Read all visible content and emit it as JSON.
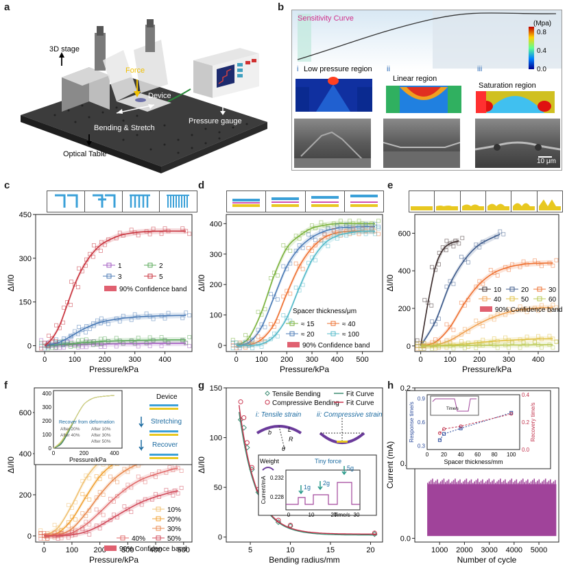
{
  "figure": {
    "panel_letters": [
      "a",
      "b",
      "c",
      "d",
      "e",
      "f",
      "g",
      "h"
    ]
  },
  "panel_a": {
    "labels": {
      "stage": "3D stage",
      "force": "Force",
      "device": "Device",
      "bending": "Bending & Stretch",
      "gauge": "Pressure gauge",
      "table": "Optical Table"
    }
  },
  "panel_b": {
    "title": "Sensitivity Curve",
    "colorbar_unit": "(Mpa)",
    "colorbar_ticks": [
      "0.8",
      "0.4",
      "0.0"
    ],
    "regions": [
      {
        "num": "i",
        "label": "Low pressure region"
      },
      {
        "num": "ii",
        "label": "Linear region"
      },
      {
        "num": "iii",
        "label": "Saturation region"
      }
    ],
    "scale_bar": "10 μm"
  },
  "panel_c": {
    "chart_data": {
      "type": "line",
      "xlabel": "Pressure/kPa",
      "ylabel": "ΔI/I0",
      "xlim": [
        -30,
        490
      ],
      "ylim": [
        -20,
        450
      ],
      "x_ticks": [
        0,
        100,
        200,
        300,
        400
      ],
      "y_ticks": [
        0,
        150,
        300,
        450
      ],
      "x": [
        0,
        25,
        50,
        75,
        100,
        125,
        150,
        175,
        200,
        250,
        300,
        350,
        400,
        470
      ],
      "series": [
        {
          "name": "1",
          "color": "#a05ac0",
          "values": [
            0,
            1,
            2,
            3,
            4,
            5,
            5,
            6,
            6,
            7,
            7,
            8,
            8,
            8
          ]
        },
        {
          "name": "2",
          "color": "#5aaa5a",
          "values": [
            0,
            2,
            4,
            6,
            8,
            10,
            12,
            14,
            15,
            17,
            18,
            19,
            20,
            20
          ]
        },
        {
          "name": "3",
          "color": "#4a7ab5",
          "values": [
            0,
            5,
            12,
            25,
            40,
            55,
            67,
            77,
            84,
            93,
            98,
            101,
            103,
            104
          ]
        },
        {
          "name": "5",
          "color": "#c8323c",
          "values": [
            0,
            25,
            70,
            140,
            210,
            265,
            305,
            335,
            355,
            378,
            388,
            392,
            393,
            393
          ]
        }
      ],
      "legend_extra": "90% Confidence band"
    }
  },
  "panel_d": {
    "chart_data": {
      "type": "line",
      "xlabel": "Pressure/kPa",
      "ylabel": "ΔI/I0",
      "xlim": [
        -40,
        580
      ],
      "ylim": [
        -20,
        430
      ],
      "x_ticks": [
        0,
        100,
        200,
        300,
        400,
        500
      ],
      "y_ticks": [
        0,
        100,
        200,
        300,
        400
      ],
      "legend_title": "Spacer thickness/μm",
      "x": [
        0,
        50,
        100,
        150,
        200,
        250,
        300,
        350,
        400,
        450,
        500,
        550
      ],
      "series": [
        {
          "name": "≈ 15",
          "color": "#7ab23c",
          "values": [
            0,
            25,
            110,
            230,
            320,
            360,
            385,
            395,
            400,
            400,
            400,
            400
          ]
        },
        {
          "name": "≈ 20",
          "color": "#4a7ab5",
          "values": [
            0,
            10,
            60,
            160,
            260,
            320,
            355,
            375,
            385,
            388,
            390,
            390
          ]
        },
        {
          "name": "≈ 40",
          "color": "#ee7030",
          "values": [
            0,
            2,
            20,
            70,
            170,
            260,
            320,
            355,
            370,
            375,
            375,
            375
          ]
        },
        {
          "name": "≈ 100",
          "color": "#50b8c8",
          "values": [
            0,
            0,
            5,
            30,
            90,
            190,
            280,
            335,
            360,
            370,
            375,
            375
          ]
        }
      ],
      "legend_extra": "90% Confidence band"
    }
  },
  "panel_e": {
    "chart_data": {
      "type": "line",
      "xlabel": "Pressure/kPa",
      "ylabel": "ΔI/I0",
      "xlim": [
        -20,
        470
      ],
      "ylim": [
        -30,
        700
      ],
      "x_ticks": [
        0,
        100,
        200,
        300,
        400
      ],
      "y_ticks": [
        0,
        200,
        400,
        600
      ],
      "series": [
        {
          "name": "10",
          "color": "#3a2a2a",
          "x": [
            0,
            25,
            50,
            75,
            100,
            130
          ],
          "values": [
            0,
            230,
            420,
            510,
            545,
            560
          ]
        },
        {
          "name": "20",
          "color": "#3c5a8a",
          "x": [
            0,
            50,
            100,
            150,
            200,
            270
          ],
          "values": [
            0,
            130,
            330,
            460,
            540,
            595
          ]
        },
        {
          "name": "30",
          "color": "#ee7030",
          "x": [
            0,
            50,
            100,
            150,
            200,
            250,
            300,
            350,
            400,
            450
          ],
          "values": [
            0,
            20,
            100,
            230,
            330,
            390,
            420,
            435,
            440,
            442
          ]
        },
        {
          "name": "40",
          "color": "#f0a050",
          "x": [
            0,
            50,
            100,
            150,
            200,
            250,
            300,
            350,
            400,
            450
          ],
          "values": [
            0,
            5,
            30,
            75,
            120,
            155,
            180,
            195,
            202,
            205
          ]
        },
        {
          "name": "50",
          "color": "#e0c040",
          "x": [
            0,
            50,
            100,
            150,
            200,
            250,
            300,
            350,
            400,
            450
          ],
          "values": [
            0,
            1,
            5,
            10,
            18,
            25,
            30,
            34,
            37,
            38
          ]
        },
        {
          "name": "60",
          "color": "#b8c850",
          "x": [
            0,
            50,
            100,
            150,
            200,
            250,
            300,
            350,
            400,
            450
          ],
          "values": [
            0,
            0,
            1,
            2,
            3,
            4,
            5,
            5,
            6,
            6
          ]
        }
      ],
      "legend_extra": "90% Confidence band"
    }
  },
  "panel_f": {
    "chart_data": {
      "type": "line",
      "xlabel": "Pressure/kPa",
      "ylabel": "ΔI/I0",
      "xlim": [
        -30,
        530
      ],
      "ylim": [
        -30,
        720
      ],
      "x_ticks": [
        0,
        100,
        200,
        300,
        400,
        500
      ],
      "y_ticks": [
        0,
        200,
        400,
        600
      ],
      "x": [
        0,
        50,
        100,
        150,
        200,
        250,
        300,
        350,
        400,
        450,
        480
      ],
      "series": [
        {
          "name": "10%",
          "color": "#f0c070",
          "values": [
            0,
            40,
            150,
            280,
            360,
            390,
            400,
            400,
            400,
            400,
            400
          ]
        },
        {
          "name": "20%",
          "color": "#f0a030",
          "values": [
            0,
            15,
            80,
            190,
            290,
            350,
            380,
            390,
            395,
            395,
            395
          ]
        },
        {
          "name": "30%",
          "color": "#e88a50",
          "values": [
            0,
            5,
            35,
            110,
            200,
            275,
            325,
            355,
            370,
            378,
            380
          ]
        },
        {
          "name": "40%",
          "color": "#e06a6a",
          "values": [
            0,
            2,
            15,
            55,
            115,
            180,
            235,
            275,
            300,
            320,
            330
          ]
        },
        {
          "name": "50%",
          "color": "#d04a5a",
          "values": [
            0,
            0,
            5,
            20,
            50,
            90,
            130,
            165,
            190,
            210,
            220
          ]
        }
      ],
      "legend_extra": "90% Confidence band",
      "inset": {
        "xlabel": "Pressure/kPa",
        "x_ticks": [
          0,
          200,
          400
        ],
        "y_ticks": [
          0,
          100,
          200,
          300,
          400
        ],
        "legend_title": "Recover from deformation",
        "legend": [
          "After 10%",
          "After 20%",
          "After 30%",
          "After 40%",
          "After 50%"
        ]
      },
      "side_labels": {
        "device": "Device",
        "stretching": "Stretching",
        "recover": "Recover"
      }
    }
  },
  "panel_g": {
    "chart_data": {
      "type": "scatter",
      "xlabel": "Bending radius/mm",
      "ylabel": "ΔI/I0",
      "xlim": [
        2,
        21.5
      ],
      "ylim": [
        -5,
        150
      ],
      "x_ticks": [
        5,
        10,
        15,
        20
      ],
      "y_ticks": [
        0,
        50,
        100,
        150
      ],
      "x": [
        3.8,
        4.2,
        4.6,
        5.2,
        6,
        7,
        8.5,
        10,
        20.5
      ],
      "series": [
        {
          "name": "Tensile Bending",
          "color": "#3a8a70",
          "values": [
            118,
            110,
            90,
            68,
            45,
            25,
            15,
            11,
            3
          ]
        },
        {
          "name": "Compressive Bending",
          "color": "#c8304a",
          "values": [
            136,
            120,
            95,
            70,
            48,
            28,
            17,
            12,
            4
          ]
        }
      ],
      "fit_label": "Fit Curve",
      "annotations": {
        "tensile": "i: Tensile strain",
        "compressive": "ii: Compressive strain",
        "b": "b",
        "L": "L",
        "R": "R",
        "theta": "θ"
      },
      "inset": {
        "ylabel": "Current/mA",
        "xlabel": "Time/s",
        "y_ticks": [
          "0.232",
          "0.228"
        ],
        "x_ticks": [
          "0",
          "10",
          "20",
          "30"
        ],
        "title_weight": "Weight",
        "title_tiny": "Tiny force",
        "arrows": [
          "1g",
          "2g",
          "5g"
        ]
      }
    }
  },
  "panel_h": {
    "chart_data": {
      "type": "area",
      "xlabel": "Number of cycle",
      "ylabel": "Current (mA)",
      "xlim": [
        0,
        5800
      ],
      "ylim": [
        -0.005,
        0.2
      ],
      "x_ticks": [
        1000,
        2000,
        3000,
        4000,
        5000
      ],
      "y_ticks": [
        "0.0",
        "0.1",
        "0.2"
      ],
      "range": [
        500,
        5700
      ],
      "values_band": [
        0.003,
        0.072
      ],
      "color": "#a0439a",
      "inset": {
        "xlabel": "Spacer thickness/mm",
        "ylabel_left": "Response time/s",
        "ylabel_right": "Recovery time/s",
        "x_ticks": [
          0,
          20,
          40,
          60,
          80,
          100
        ],
        "y_left_ticks": [
          "0.3",
          "0.6",
          "0.9"
        ],
        "y_right_ticks": [
          "0.0",
          "0.2",
          "0.4"
        ],
        "x": [
          15,
          20,
          40,
          100
        ],
        "response": [
          0.37,
          0.45,
          0.52,
          0.72
        ],
        "recovery": [
          0.12,
          0.15,
          0.17,
          0.26
        ],
        "mini_label": "Time/s"
      }
    }
  }
}
